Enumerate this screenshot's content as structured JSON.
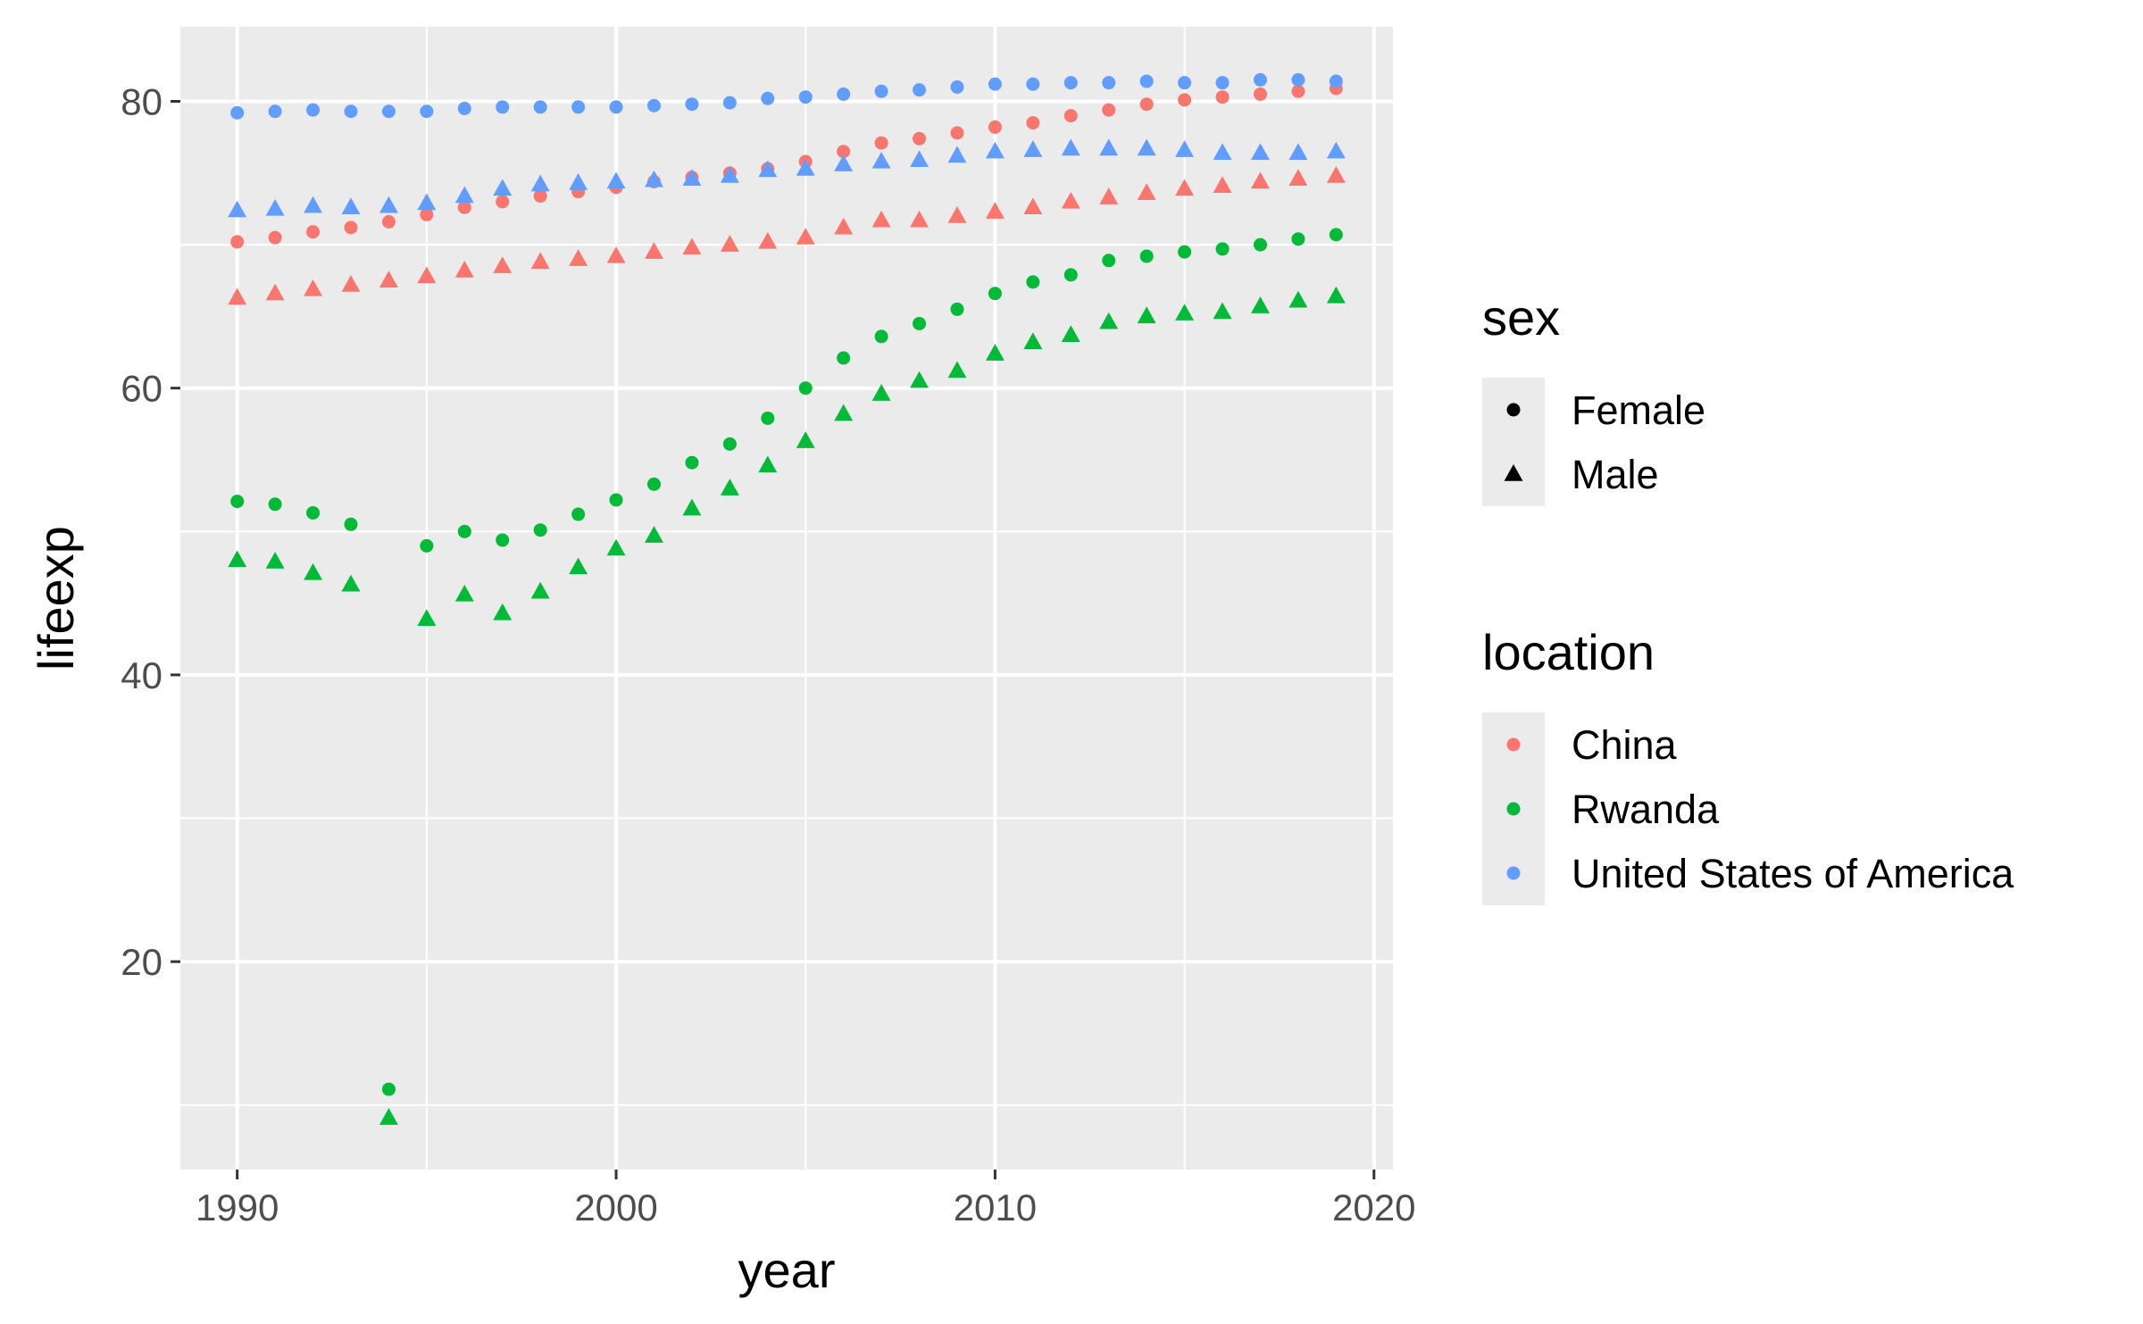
{
  "chart_data": {
    "type": "scatter",
    "title": "",
    "xlabel": "year",
    "ylabel": "lifeexp",
    "xlim": [
      1988.5,
      2020.5
    ],
    "ylim": [
      5.5,
      85.2
    ],
    "x_ticks": [
      "1990",
      "2000",
      "2010",
      "2020"
    ],
    "y_ticks": [
      "20",
      "40",
      "60",
      "80"
    ],
    "grid": true,
    "legend_position": "right",
    "x": [
      1990,
      1991,
      1992,
      1993,
      1994,
      1995,
      1996,
      1997,
      1998,
      1999,
      2000,
      2001,
      2002,
      2003,
      2004,
      2005,
      2006,
      2007,
      2008,
      2009,
      2010,
      2011,
      2012,
      2013,
      2014,
      2015,
      2016,
      2017,
      2018,
      2019
    ],
    "legends": [
      {
        "title": "sex",
        "aesthetic": "shape",
        "entries": [
          {
            "label": "Female",
            "shape": "circle"
          },
          {
            "label": "Male",
            "shape": "triangle"
          }
        ]
      },
      {
        "title": "location",
        "aesthetic": "colour",
        "entries": [
          {
            "label": "China",
            "color": "#F8766D"
          },
          {
            "label": "Rwanda",
            "color": "#00BA38"
          },
          {
            "label": "United States of America",
            "color": "#619CFF"
          }
        ]
      }
    ],
    "series": [
      {
        "location": "China",
        "sex": "Female",
        "values": [
          70.2,
          70.5,
          70.9,
          71.2,
          71.6,
          72.1,
          72.6,
          73.0,
          73.4,
          73.7,
          74.0,
          74.4,
          74.7,
          75.0,
          75.3,
          75.8,
          76.5,
          77.1,
          77.4,
          77.8,
          78.2,
          78.5,
          79.0,
          79.4,
          79.8,
          80.1,
          80.3,
          80.5,
          80.7,
          80.9
        ]
      },
      {
        "location": "China",
        "sex": "Male",
        "values": [
          66.3,
          66.6,
          66.9,
          67.2,
          67.5,
          67.8,
          68.2,
          68.5,
          68.8,
          69.0,
          69.2,
          69.5,
          69.8,
          70.0,
          70.2,
          70.5,
          71.2,
          71.7,
          71.7,
          72.0,
          72.3,
          72.6,
          73.0,
          73.3,
          73.6,
          73.9,
          74.1,
          74.4,
          74.6,
          74.8
        ]
      },
      {
        "location": "Rwanda",
        "sex": "Female",
        "values": [
          52.1,
          51.9,
          51.3,
          50.5,
          11.1,
          49.0,
          50.0,
          49.4,
          50.1,
          51.2,
          52.2,
          53.3,
          54.8,
          56.1,
          57.9,
          60.0,
          62.1,
          63.6,
          64.5,
          65.5,
          66.6,
          67.4,
          67.9,
          68.9,
          69.2,
          69.5,
          69.7,
          70.0,
          70.4,
          70.7
        ]
      },
      {
        "location": "Rwanda",
        "sex": "Male",
        "values": [
          48.0,
          47.9,
          47.1,
          46.3,
          9.1,
          43.9,
          45.6,
          44.3,
          45.8,
          47.5,
          48.8,
          49.7,
          51.6,
          53.0,
          54.6,
          56.3,
          58.2,
          59.6,
          60.5,
          61.2,
          62.4,
          63.2,
          63.7,
          64.6,
          65.0,
          65.2,
          65.3,
          65.7,
          66.1,
          66.4
        ]
      },
      {
        "location": "United States of America",
        "sex": "Female",
        "values": [
          79.2,
          79.3,
          79.4,
          79.3,
          79.3,
          79.3,
          79.5,
          79.6,
          79.6,
          79.6,
          79.6,
          79.7,
          79.8,
          79.9,
          80.2,
          80.3,
          80.5,
          80.7,
          80.8,
          81.0,
          81.2,
          81.2,
          81.3,
          81.3,
          81.4,
          81.3,
          81.3,
          81.5,
          81.5,
          81.4
        ]
      },
      {
        "location": "United States of America",
        "sex": "Male",
        "values": [
          72.4,
          72.5,
          72.7,
          72.6,
          72.7,
          72.9,
          73.4,
          73.9,
          74.2,
          74.3,
          74.4,
          74.5,
          74.6,
          74.8,
          75.2,
          75.3,
          75.6,
          75.8,
          75.9,
          76.2,
          76.5,
          76.6,
          76.7,
          76.7,
          76.7,
          76.6,
          76.4,
          76.4,
          76.4,
          76.5
        ]
      }
    ]
  }
}
